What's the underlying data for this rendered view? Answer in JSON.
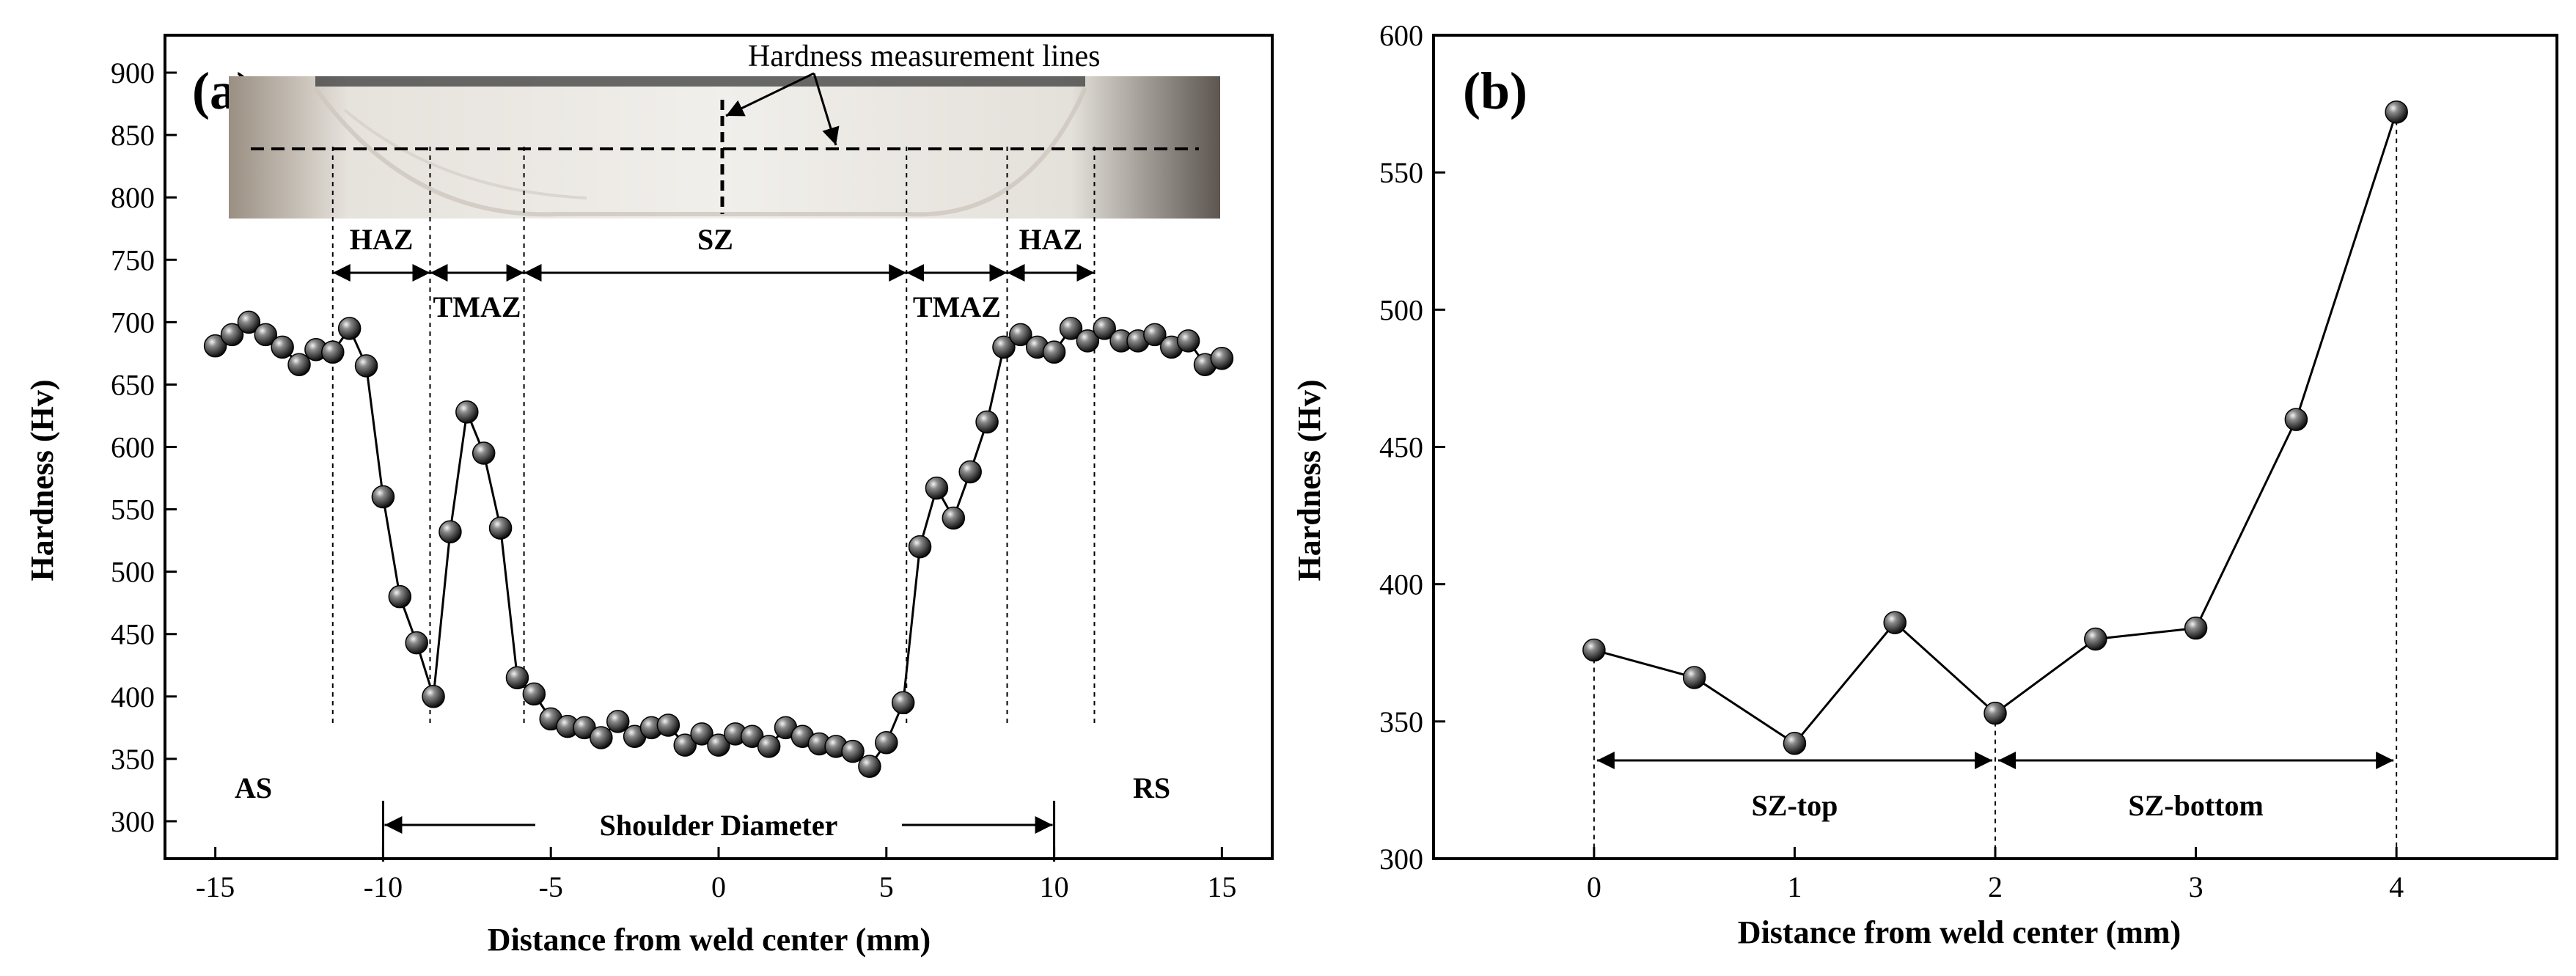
{
  "panels": [
    {
      "label": "(a)",
      "ylabel": "Hardness (Hv)",
      "xlabel": "Distance from weld center (mm)",
      "inset_title": "Hardness measurement lines",
      "zones": [
        {
          "label": "HAZ",
          "from": -11.5,
          "to": -8.6,
          "row": "top"
        },
        {
          "label": "TMAZ",
          "from": -8.6,
          "to": -5.8,
          "row": "bottom"
        },
        {
          "label": "SZ",
          "from": -5.8,
          "to": 5.6,
          "row": "top"
        },
        {
          "label": "TMAZ",
          "from": 5.6,
          "to": 8.6,
          "row": "bottom"
        },
        {
          "label": "HAZ",
          "from": 8.6,
          "to": 11.2,
          "row": "top"
        }
      ],
      "side_labels": {
        "left": "AS",
        "right": "RS"
      },
      "shoulder_label": "Shoulder Diameter"
    },
    {
      "label": "(b)",
      "ylabel": "Hardness (Hv)",
      "xlabel": "Distance from weld center (mm)",
      "regions": [
        {
          "label": "SZ-top",
          "from": 0,
          "to": 2
        },
        {
          "label": "SZ-bottom",
          "from": 2,
          "to": 4
        }
      ]
    }
  ],
  "chart_data": [
    {
      "type": "line",
      "markers": true,
      "xlim": [
        -16.5,
        16.5
      ],
      "ylim": [
        270,
        930
      ],
      "xticks": [
        "-15",
        "-10",
        "-5",
        "0",
        "5",
        "10",
        "15"
      ],
      "yticks": [
        "300",
        "350",
        "400",
        "450",
        "500",
        "550",
        "600",
        "650",
        "700",
        "750",
        "800",
        "850",
        "900"
      ],
      "grid": false,
      "x": [
        -15,
        -14.5,
        -14,
        -13.5,
        -13,
        -12.5,
        -12,
        -11.5,
        -11,
        -10.5,
        -10,
        -9.5,
        -9,
        -8.5,
        -8,
        -7.5,
        -7,
        -6.5,
        -6,
        -5.5,
        -5,
        -4.5,
        -4,
        -3.5,
        -3,
        -2.5,
        -2,
        -1.5,
        -1,
        -0.5,
        0,
        0.5,
        1,
        1.5,
        2,
        2.5,
        3,
        3.5,
        4,
        4.5,
        5,
        5.5,
        6,
        6.5,
        7,
        7.5,
        8,
        8.5,
        9,
        9.5,
        10,
        10.5,
        11,
        11.5,
        12,
        12.5,
        13,
        13.5,
        14,
        14.5,
        15
      ],
      "y": [
        681,
        690,
        700,
        690,
        680,
        666,
        678,
        676,
        695,
        665,
        560,
        480,
        443,
        400,
        532,
        628,
        595,
        535,
        415,
        402,
        382,
        376,
        375,
        367,
        380,
        368,
        375,
        377,
        361,
        370,
        361,
        370,
        368,
        360,
        375,
        368,
        362,
        360,
        356,
        344,
        363,
        395,
        520,
        567,
        543,
        580,
        620,
        680,
        690,
        680,
        676,
        695,
        685,
        695,
        685,
        685,
        690,
        680,
        685,
        666,
        671
      ],
      "shoulder_range": [
        -10,
        10
      ],
      "zone_lines": [
        -11.5,
        -8.6,
        -5.8,
        5.6,
        8.6,
        11.2
      ]
    },
    {
      "type": "line",
      "markers": true,
      "xlim": [
        -0.8,
        4.8
      ],
      "ylim": [
        300,
        600
      ],
      "xticks": [
        "0",
        "1",
        "2",
        "3",
        "4"
      ],
      "yticks": [
        "300",
        "350",
        "400",
        "450",
        "500",
        "550",
        "600"
      ],
      "grid": false,
      "x": [
        0,
        0.5,
        1,
        1.5,
        2,
        2.5,
        3,
        3.5,
        4
      ],
      "y": [
        376,
        366,
        342,
        386,
        353,
        380,
        384,
        460,
        572
      ],
      "divider_lines": [
        0,
        2,
        4
      ]
    }
  ]
}
